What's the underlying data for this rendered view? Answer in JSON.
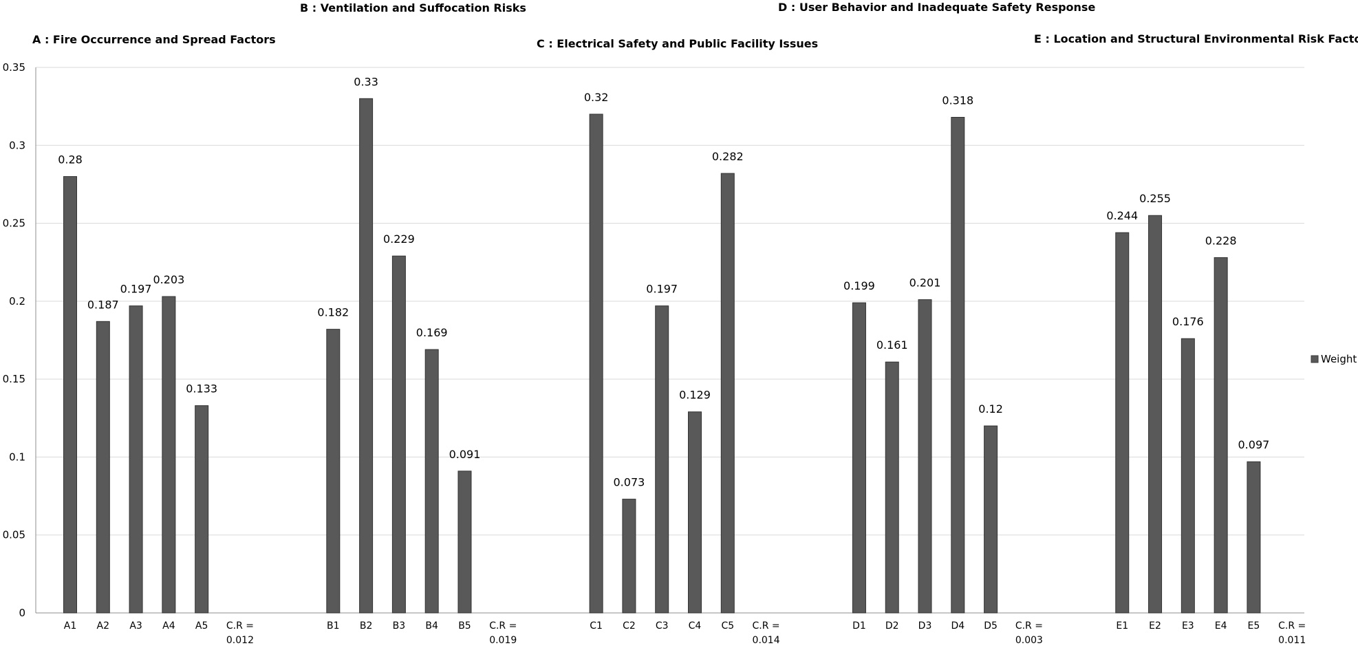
{
  "chart_data": {
    "type": "bar",
    "titles": [
      "A : Fire Occurrence and Spread Factors",
      "B : Ventilation and Suffocation Risks",
      "C : Electrical Safety and Public Facility Issues",
      "D : User Behavior and Inadequate Safety Response",
      "E : Location and Structural Environmental Risk Factors"
    ],
    "groups": [
      {
        "id": "A",
        "categories": [
          "A1",
          "A2",
          "A3",
          "A4",
          "A5"
        ],
        "values": [
          0.28,
          0.187,
          0.197,
          0.203,
          0.133
        ],
        "value_labels": [
          "0.28",
          "0.187",
          "0.197",
          "0.203",
          "0.133"
        ],
        "cr": [
          "C.R =",
          "0.012"
        ]
      },
      {
        "id": "B",
        "categories": [
          "B1",
          "B2",
          "B3",
          "B4",
          "B5"
        ],
        "values": [
          0.182,
          0.33,
          0.229,
          0.169,
          0.091
        ],
        "value_labels": [
          "0.182",
          "0.33",
          "0.229",
          "0.169",
          "0.091"
        ],
        "cr": [
          "C.R =",
          "0.019"
        ]
      },
      {
        "id": "C",
        "categories": [
          "C1",
          "C2",
          "C3",
          "C4",
          "C5"
        ],
        "values": [
          0.32,
          0.073,
          0.197,
          0.129,
          0.282
        ],
        "value_labels": [
          "0.32",
          "0.073",
          "0.197",
          "0.129",
          "0.282"
        ],
        "cr": [
          "C.R =",
          "0.014"
        ]
      },
      {
        "id": "D",
        "categories": [
          "D1",
          "D2",
          "D3",
          "D4",
          "D5"
        ],
        "values": [
          0.199,
          0.161,
          0.201,
          0.318,
          0.12
        ],
        "value_labels": [
          "0.199",
          "0.161",
          "0.201",
          "0.318",
          "0.12"
        ],
        "cr": [
          "C.R =",
          "0.003"
        ]
      },
      {
        "id": "E",
        "categories": [
          "E1",
          "E2",
          "E3",
          "E4",
          "E5"
        ],
        "values": [
          0.244,
          0.255,
          0.176,
          0.228,
          0.097
        ],
        "value_labels": [
          "0.244",
          "0.255",
          "0.176",
          "0.228",
          "0.097"
        ],
        "cr": [
          "C.R =",
          "0.011"
        ]
      }
    ],
    "yticks": [
      "0",
      "0.05",
      "0.1",
      "0.15",
      "0.2",
      "0.25",
      "0.3",
      "0.35"
    ],
    "ylim": [
      0,
      0.35
    ],
    "series": [
      {
        "name": "Weight",
        "color": "#595959"
      }
    ],
    "legend_position": "right",
    "grid": true
  }
}
